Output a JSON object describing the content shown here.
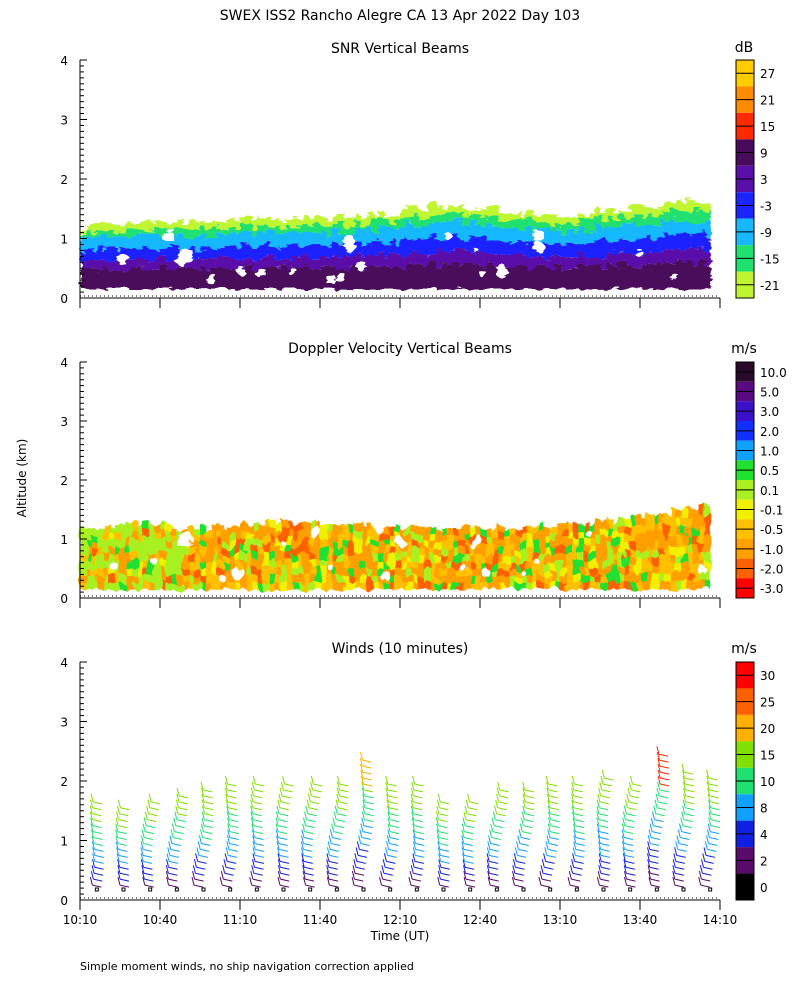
{
  "title": "SWEX ISS2 Rancho Alegre CA  13 Apr 2022 Day 103",
  "ylabel": "Altitude (km)",
  "xlabel": "Time (UT)",
  "footnote": "Simple moment winds, no ship navigation correction applied",
  "x_ticks": [
    "10:10",
    "10:40",
    "11:10",
    "11:40",
    "12:10",
    "12:40",
    "13:10",
    "13:40",
    "14:10"
  ],
  "y_ticks": [
    "0",
    "1",
    "2",
    "3",
    "4"
  ],
  "chart_data": [
    {
      "type": "heatmap",
      "title": "SNR Vertical Beams",
      "unit": "dB",
      "ylim": [
        0,
        4
      ],
      "xlim": [
        "10:10",
        "14:10"
      ],
      "colorbar": {
        "labels": [
          "27",
          "21",
          "15",
          "9",
          "3",
          "-3",
          "-9",
          "-15",
          "-21"
        ],
        "colors": [
          "#ffcc00",
          "#ff8c00",
          "#ff2a00",
          "#4a0a5c",
          "#5a10a8",
          "#1a24ff",
          "#18b8ff",
          "#20e070",
          "#bff530"
        ]
      },
      "echo_top_km": [
        1.2,
        1.25,
        1.3,
        1.25,
        1.3,
        1.35,
        1.3,
        1.35,
        1.4,
        1.5,
        1.55,
        1.5,
        1.4,
        1.35,
        1.45,
        1.5,
        1.6,
        1.6
      ]
    },
    {
      "type": "heatmap",
      "title": "Doppler Velocity Vertical Beams",
      "unit": "m/s",
      "ylim": [
        0,
        4
      ],
      "xlim": [
        "10:10",
        "14:10"
      ],
      "colorbar": {
        "labels": [
          "10.0",
          "5.0",
          "3.0",
          "2.0",
          "1.0",
          "0.5",
          "0.1",
          "-0.1",
          "-0.5",
          "-1.0",
          "-2.0",
          "-3.0"
        ],
        "colors": [
          "#2a0a2a",
          "#5a0a80",
          "#3a10c8",
          "#1030ff",
          "#10a0ff",
          "#20e030",
          "#a8f020",
          "#f0f000",
          "#ffc000",
          "#ffa000",
          "#ff6000",
          "#ff0000"
        ]
      },
      "echo_top_km": [
        1.2,
        1.25,
        1.25,
        1.2,
        1.2,
        1.3,
        1.3,
        1.25,
        1.25,
        1.2,
        1.2,
        1.2,
        1.2,
        1.25,
        1.3,
        1.35,
        1.45,
        1.55
      ]
    },
    {
      "type": "scatter",
      "title": "Winds (10 minutes)",
      "unit": "m/s",
      "ylim": [
        0,
        4
      ],
      "xlim": [
        "10:10",
        "14:10"
      ],
      "colorbar": {
        "labels": [
          "30",
          "25",
          "20",
          "15",
          "10",
          "8",
          "4",
          "2",
          "0"
        ],
        "colors": [
          "#ff0000",
          "#ff6000",
          "#ffb000",
          "#80e000",
          "#20e070",
          "#10a0ff",
          "#1020e0",
          "#5a0a6a",
          "#000000"
        ]
      },
      "profile_times": [
        "10:15",
        "10:25",
        "10:35",
        "10:45",
        "10:55",
        "11:05",
        "11:15",
        "11:25",
        "11:35",
        "11:45",
        "11:55",
        "12:05",
        "12:15",
        "12:25",
        "12:35",
        "12:45",
        "12:55",
        "13:05",
        "13:15",
        "13:25",
        "13:35",
        "13:45",
        "13:55",
        "14:05"
      ],
      "profile_tops_km": [
        1.7,
        1.65,
        1.7,
        1.8,
        1.9,
        2.0,
        2.05,
        2.0,
        2.0,
        2.0,
        2.45,
        2.0,
        2.0,
        1.7,
        1.75,
        1.9,
        1.95,
        2.0,
        2.05,
        2.1,
        2.0,
        2.5,
        2.2,
        2.15
      ]
    }
  ]
}
